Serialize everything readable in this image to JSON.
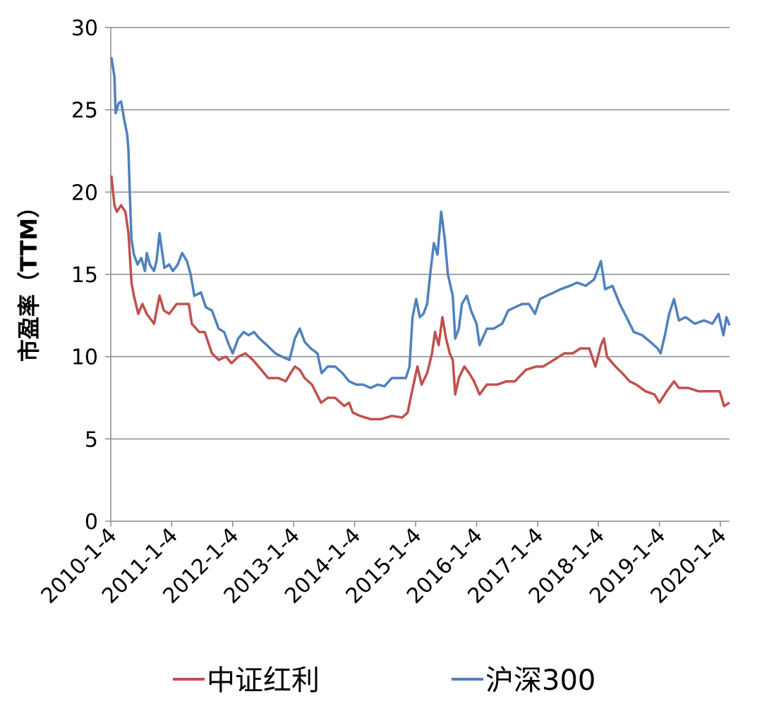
{
  "chart_data": {
    "type": "line",
    "title": "",
    "xlabel": "",
    "ylabel": "市盈率（TTM）",
    "ylim": [
      0,
      30
    ],
    "yticks": [
      0,
      5,
      10,
      15,
      20,
      25,
      30
    ],
    "xlim": [
      2010.0,
      2020.15
    ],
    "xtick_labels": [
      "2010-1-4",
      "2011-1-4",
      "2012-1-4",
      "2013-1-4",
      "2014-1-4",
      "2015-1-4",
      "2016-1-4",
      "2017-1-4",
      "2018-1-4",
      "2019-1-4",
      "2020-1-4"
    ],
    "grid": true,
    "legend_position": "bottom",
    "series": [
      {
        "name": "中证红利",
        "color": "#C0504D",
        "points": [
          [
            2010.01,
            21.0
          ],
          [
            2010.06,
            19.2
          ],
          [
            2010.1,
            18.8
          ],
          [
            2010.17,
            19.2
          ],
          [
            2010.24,
            18.8
          ],
          [
            2010.29,
            17.5
          ],
          [
            2010.34,
            14.5
          ],
          [
            2010.38,
            13.7
          ],
          [
            2010.45,
            12.6
          ],
          [
            2010.52,
            13.2
          ],
          [
            2010.59,
            12.6
          ],
          [
            2010.71,
            12.0
          ],
          [
            2010.8,
            13.7
          ],
          [
            2010.87,
            12.8
          ],
          [
            2010.96,
            12.6
          ],
          [
            2011.08,
            13.2
          ],
          [
            2011.19,
            13.2
          ],
          [
            2011.28,
            13.2
          ],
          [
            2011.33,
            12.0
          ],
          [
            2011.45,
            11.5
          ],
          [
            2011.54,
            11.5
          ],
          [
            2011.66,
            10.2
          ],
          [
            2011.77,
            9.8
          ],
          [
            2011.89,
            10.0
          ],
          [
            2011.98,
            9.6
          ],
          [
            2012.09,
            10.0
          ],
          [
            2012.21,
            10.2
          ],
          [
            2012.33,
            9.8
          ],
          [
            2012.47,
            9.2
          ],
          [
            2012.58,
            8.7
          ],
          [
            2012.75,
            8.7
          ],
          [
            2012.87,
            8.5
          ],
          [
            2012.95,
            9.0
          ],
          [
            2013.02,
            9.4
          ],
          [
            2013.1,
            9.2
          ],
          [
            2013.18,
            8.7
          ],
          [
            2013.3,
            8.3
          ],
          [
            2013.45,
            7.2
          ],
          [
            2013.56,
            7.5
          ],
          [
            2013.68,
            7.5
          ],
          [
            2013.83,
            7.0
          ],
          [
            2013.91,
            7.2
          ],
          [
            2013.97,
            6.6
          ],
          [
            2014.09,
            6.4
          ],
          [
            2014.26,
            6.2
          ],
          [
            2014.43,
            6.2
          ],
          [
            2014.61,
            6.4
          ],
          [
            2014.78,
            6.3
          ],
          [
            2014.87,
            6.6
          ],
          [
            2014.93,
            7.7
          ],
          [
            2014.99,
            8.7
          ],
          [
            2015.03,
            9.4
          ],
          [
            2015.1,
            8.3
          ],
          [
            2015.19,
            9.0
          ],
          [
            2015.27,
            10.2
          ],
          [
            2015.32,
            11.5
          ],
          [
            2015.38,
            10.7
          ],
          [
            2015.44,
            12.4
          ],
          [
            2015.5,
            11.1
          ],
          [
            2015.56,
            10.2
          ],
          [
            2015.61,
            9.8
          ],
          [
            2015.65,
            7.7
          ],
          [
            2015.71,
            8.7
          ],
          [
            2015.8,
            9.4
          ],
          [
            2015.88,
            9.0
          ],
          [
            2015.96,
            8.5
          ],
          [
            2016.05,
            7.7
          ],
          [
            2016.17,
            8.3
          ],
          [
            2016.34,
            8.3
          ],
          [
            2016.49,
            8.5
          ],
          [
            2016.63,
            8.5
          ],
          [
            2016.81,
            9.2
          ],
          [
            2016.98,
            9.4
          ],
          [
            2017.09,
            9.4
          ],
          [
            2017.27,
            9.8
          ],
          [
            2017.44,
            10.2
          ],
          [
            2017.58,
            10.2
          ],
          [
            2017.7,
            10.5
          ],
          [
            2017.85,
            10.5
          ],
          [
            2017.95,
            9.4
          ],
          [
            2018.04,
            10.7
          ],
          [
            2018.09,
            11.1
          ],
          [
            2018.14,
            10.0
          ],
          [
            2018.28,
            9.4
          ],
          [
            2018.39,
            9.0
          ],
          [
            2018.51,
            8.5
          ],
          [
            2018.62,
            8.3
          ],
          [
            2018.77,
            7.9
          ],
          [
            2018.92,
            7.7
          ],
          [
            2019.0,
            7.2
          ],
          [
            2019.12,
            7.9
          ],
          [
            2019.24,
            8.5
          ],
          [
            2019.32,
            8.1
          ],
          [
            2019.47,
            8.1
          ],
          [
            2019.64,
            7.9
          ],
          [
            2019.81,
            7.9
          ],
          [
            2019.99,
            7.9
          ],
          [
            2020.06,
            7.0
          ],
          [
            2020.15,
            7.2
          ]
        ]
      },
      {
        "name": "沪深300",
        "color": "#4F81BD",
        "points": [
          [
            2010.01,
            28.2
          ],
          [
            2010.06,
            27.0
          ],
          [
            2010.08,
            24.8
          ],
          [
            2010.13,
            25.4
          ],
          [
            2010.17,
            25.5
          ],
          [
            2010.22,
            24.4
          ],
          [
            2010.27,
            23.5
          ],
          [
            2010.29,
            22.5
          ],
          [
            2010.31,
            20.1
          ],
          [
            2010.34,
            17.1
          ],
          [
            2010.38,
            16.2
          ],
          [
            2010.44,
            15.6
          ],
          [
            2010.5,
            16.0
          ],
          [
            2010.56,
            15.2
          ],
          [
            2010.59,
            16.3
          ],
          [
            2010.64,
            15.6
          ],
          [
            2010.71,
            15.2
          ],
          [
            2010.75,
            15.8
          ],
          [
            2010.8,
            17.5
          ],
          [
            2010.83,
            16.7
          ],
          [
            2010.88,
            15.4
          ],
          [
            2010.96,
            15.6
          ],
          [
            2011.02,
            15.2
          ],
          [
            2011.1,
            15.6
          ],
          [
            2011.17,
            16.3
          ],
          [
            2011.25,
            15.8
          ],
          [
            2011.31,
            15.0
          ],
          [
            2011.37,
            13.7
          ],
          [
            2011.48,
            13.9
          ],
          [
            2011.56,
            13.0
          ],
          [
            2011.66,
            12.8
          ],
          [
            2011.77,
            11.7
          ],
          [
            2011.86,
            11.5
          ],
          [
            2011.94,
            10.7
          ],
          [
            2012.0,
            10.2
          ],
          [
            2012.09,
            11.1
          ],
          [
            2012.18,
            11.5
          ],
          [
            2012.26,
            11.3
          ],
          [
            2012.35,
            11.5
          ],
          [
            2012.44,
            11.1
          ],
          [
            2012.56,
            10.7
          ],
          [
            2012.7,
            10.2
          ],
          [
            2012.81,
            10.0
          ],
          [
            2012.93,
            9.8
          ],
          [
            2013.02,
            11.1
          ],
          [
            2013.1,
            11.7
          ],
          [
            2013.18,
            10.9
          ],
          [
            2013.28,
            10.5
          ],
          [
            2013.39,
            10.2
          ],
          [
            2013.46,
            9.0
          ],
          [
            2013.56,
            9.4
          ],
          [
            2013.68,
            9.4
          ],
          [
            2013.8,
            9.0
          ],
          [
            2013.91,
            8.5
          ],
          [
            2014.03,
            8.3
          ],
          [
            2014.14,
            8.3
          ],
          [
            2014.26,
            8.1
          ],
          [
            2014.38,
            8.3
          ],
          [
            2014.49,
            8.2
          ],
          [
            2014.61,
            8.7
          ],
          [
            2014.72,
            8.7
          ],
          [
            2014.84,
            8.7
          ],
          [
            2014.9,
            9.4
          ],
          [
            2014.95,
            12.4
          ],
          [
            2015.01,
            13.5
          ],
          [
            2015.07,
            12.4
          ],
          [
            2015.13,
            12.6
          ],
          [
            2015.19,
            13.2
          ],
          [
            2015.24,
            15.0
          ],
          [
            2015.3,
            16.9
          ],
          [
            2015.36,
            16.2
          ],
          [
            2015.42,
            18.8
          ],
          [
            2015.48,
            17.1
          ],
          [
            2015.53,
            15.0
          ],
          [
            2015.61,
            13.7
          ],
          [
            2015.65,
            11.1
          ],
          [
            2015.71,
            11.7
          ],
          [
            2015.76,
            13.2
          ],
          [
            2015.84,
            13.7
          ],
          [
            2015.91,
            12.8
          ],
          [
            2016.0,
            12.0
          ],
          [
            2016.05,
            10.7
          ],
          [
            2016.17,
            11.7
          ],
          [
            2016.28,
            11.7
          ],
          [
            2016.42,
            12.0
          ],
          [
            2016.52,
            12.8
          ],
          [
            2016.63,
            13.0
          ],
          [
            2016.75,
            13.2
          ],
          [
            2016.86,
            13.2
          ],
          [
            2016.96,
            12.6
          ],
          [
            2017.04,
            13.5
          ],
          [
            2017.15,
            13.7
          ],
          [
            2017.27,
            13.9
          ],
          [
            2017.38,
            14.1
          ],
          [
            2017.53,
            14.3
          ],
          [
            2017.65,
            14.5
          ],
          [
            2017.79,
            14.3
          ],
          [
            2017.93,
            14.7
          ],
          [
            2018.04,
            15.8
          ],
          [
            2018.11,
            14.1
          ],
          [
            2018.23,
            14.3
          ],
          [
            2018.35,
            13.2
          ],
          [
            2018.46,
            12.4
          ],
          [
            2018.58,
            11.5
          ],
          [
            2018.72,
            11.3
          ],
          [
            2018.85,
            10.9
          ],
          [
            2018.97,
            10.5
          ],
          [
            2019.02,
            10.2
          ],
          [
            2019.09,
            11.3
          ],
          [
            2019.16,
            12.6
          ],
          [
            2019.24,
            13.5
          ],
          [
            2019.32,
            12.2
          ],
          [
            2019.43,
            12.4
          ],
          [
            2019.58,
            12.0
          ],
          [
            2019.73,
            12.2
          ],
          [
            2019.87,
            12.0
          ],
          [
            2019.97,
            12.6
          ],
          [
            2020.05,
            11.3
          ],
          [
            2020.1,
            12.4
          ],
          [
            2020.15,
            11.9
          ]
        ]
      }
    ]
  }
}
